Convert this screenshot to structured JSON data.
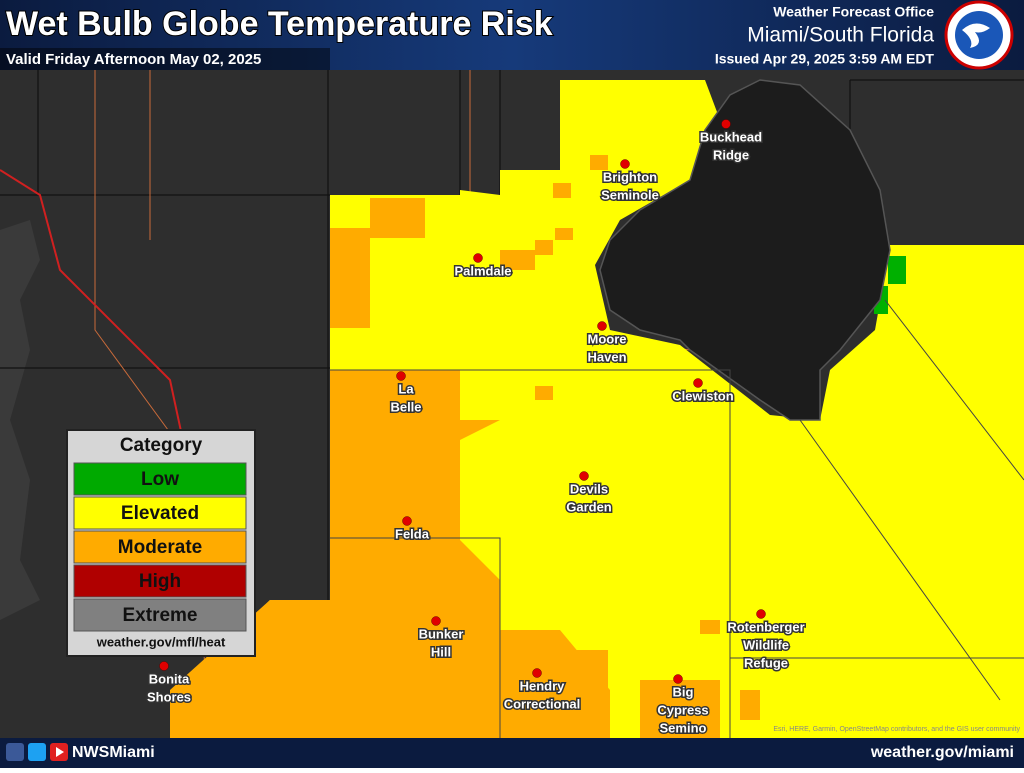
{
  "header": {
    "title": "Wet Bulb Globe Temperature Risk",
    "valid": "Valid Friday Afternoon May 02, 2025",
    "office_label": "Weather Forecast Office",
    "office": "Miami/South Florida",
    "issued": "Issued Apr 29, 2025 3:59 AM EDT"
  },
  "legend": {
    "title": "Category",
    "items": [
      "Low",
      "Elevated",
      "Moderate",
      "High",
      "Extreme"
    ],
    "link": "weather.gov/mfl/heat"
  },
  "places": [
    {
      "lines": [
        "Buckhead",
        "Ridge"
      ]
    },
    {
      "lines": [
        "Brighton",
        "Seminole"
      ]
    },
    {
      "lines": [
        "Palmdale"
      ]
    },
    {
      "lines": [
        "Moore",
        "Haven"
      ]
    },
    {
      "lines": [
        "Clewiston"
      ]
    },
    {
      "lines": [
        "La",
        "Belle"
      ]
    },
    {
      "lines": [
        "Devils",
        "Garden"
      ]
    },
    {
      "lines": [
        "Felda"
      ]
    },
    {
      "lines": [
        "Bunker",
        "Hill"
      ]
    },
    {
      "lines": [
        "Rotenberger",
        "Wildlife",
        "Refuge"
      ]
    },
    {
      "lines": [
        "Bonita",
        "Shores"
      ]
    },
    {
      "lines": [
        "Hendry",
        "Correctional"
      ]
    },
    {
      "lines": [
        "Big",
        "Cypress",
        "Semino"
      ]
    }
  ],
  "attribution": "Esri, HERE, Garmin, OpenStreetMap contributors, and the GIS user community",
  "footer": {
    "social": "NWSMiami",
    "site": "weather.gov/miami"
  }
}
